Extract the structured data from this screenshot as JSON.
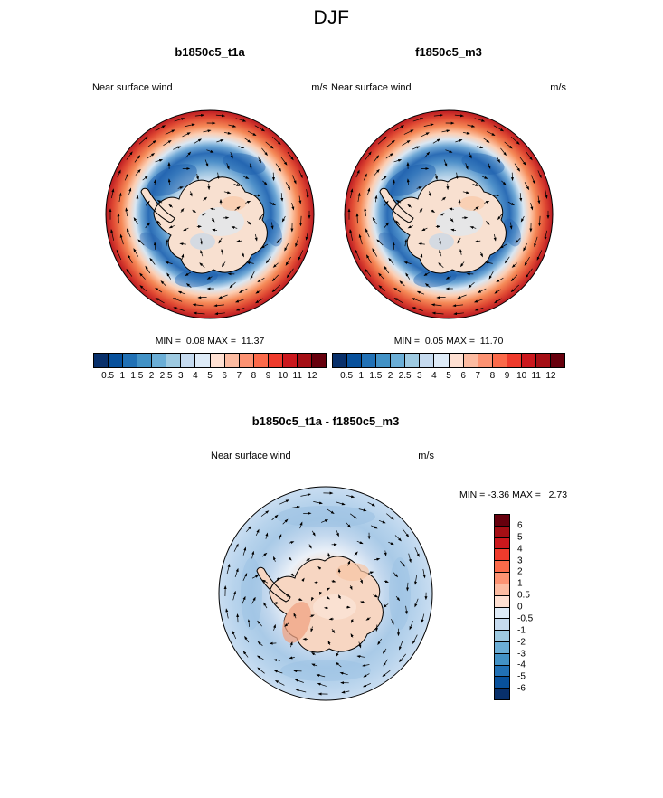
{
  "title": "DJF",
  "panels": {
    "left": {
      "title": "b1850c5_t1a",
      "field_label": "Near surface wind",
      "units": "m/s",
      "stats": "MIN =  0.08 MAX =  11.37"
    },
    "right": {
      "title": "f1850c5_m3",
      "field_label": "Near surface wind",
      "units": "m/s",
      "stats": "MIN =  0.05 MAX =  11.70"
    },
    "diff": {
      "title": "b1850c5_t1a - f1850c5_m3",
      "field_label": "Near surface wind",
      "units": "m/s",
      "stats": "MIN = -3.36 MAX =   2.73"
    }
  },
  "colorbar_speed": {
    "ticks": [
      "0.5",
      "1",
      "1.5",
      "2",
      "2.5",
      "3",
      "4",
      "5",
      "6",
      "7",
      "8",
      "9",
      "10",
      "11",
      "12"
    ],
    "colors": [
      "#08306b",
      "#08519c",
      "#2171b5",
      "#4292c6",
      "#6baed6",
      "#9ecae1",
      "#c6dbef",
      "#deebf7",
      "#fee0d2",
      "#fcbba1",
      "#fc9272",
      "#fb6a4a",
      "#ef3b2c",
      "#cb181d",
      "#a50f15",
      "#67000d"
    ]
  },
  "colorbar_diff": {
    "ticks": [
      "6",
      "5",
      "4",
      "3",
      "2",
      "1",
      "0.5",
      "0",
      "-0.5",
      "-1",
      "-2",
      "-3",
      "-4",
      "-5",
      "-6"
    ],
    "colors": [
      "#67000d",
      "#a50f15",
      "#cb181d",
      "#ef3b2c",
      "#fb6a4a",
      "#fc9272",
      "#fcbba1",
      "#fee0d2",
      "#deebf7",
      "#c6dbef",
      "#9ecae1",
      "#6baed6",
      "#4292c6",
      "#2171b5",
      "#08519c",
      "#08306b"
    ]
  },
  "chart_data": [
    {
      "type": "heatmap",
      "subtype": "south_polar_stereographic_contour_vector_map",
      "title": "b1850c5_t1a",
      "season": "DJF",
      "variable": "Near surface wind",
      "units": "m/s",
      "min": 0.08,
      "max": 11.37,
      "contour_levels": [
        0.5,
        1,
        1.5,
        2,
        2.5,
        3,
        4,
        5,
        6,
        7,
        8,
        9,
        10,
        11,
        12
      ],
      "palette": "blue_to_red",
      "legend_position": "bottom",
      "annotations": [
        "wind vector arrows",
        "Antarctica coastline"
      ]
    },
    {
      "type": "heatmap",
      "subtype": "south_polar_stereographic_contour_vector_map",
      "title": "f1850c5_m3",
      "season": "DJF",
      "variable": "Near surface wind",
      "units": "m/s",
      "min": 0.05,
      "max": 11.7,
      "contour_levels": [
        0.5,
        1,
        1.5,
        2,
        2.5,
        3,
        4,
        5,
        6,
        7,
        8,
        9,
        10,
        11,
        12
      ],
      "palette": "blue_to_red",
      "legend_position": "bottom",
      "annotations": [
        "wind vector arrows",
        "Antarctica coastline"
      ]
    },
    {
      "type": "heatmap",
      "subtype": "south_polar_stereographic_contour_vector_map",
      "title": "b1850c5_t1a - f1850c5_m3",
      "season": "DJF",
      "variable": "Near surface wind",
      "units": "m/s",
      "min": -3.36,
      "max": 2.73,
      "contour_levels": [
        -6,
        -5,
        -4,
        -3,
        -2,
        -1,
        -0.5,
        0,
        0.5,
        1,
        2,
        3,
        4,
        5,
        6
      ],
      "palette": "red_to_blue_vertical",
      "legend_position": "right",
      "annotations": [
        "wind vector difference arrows",
        "Antarctica coastline"
      ]
    }
  ]
}
